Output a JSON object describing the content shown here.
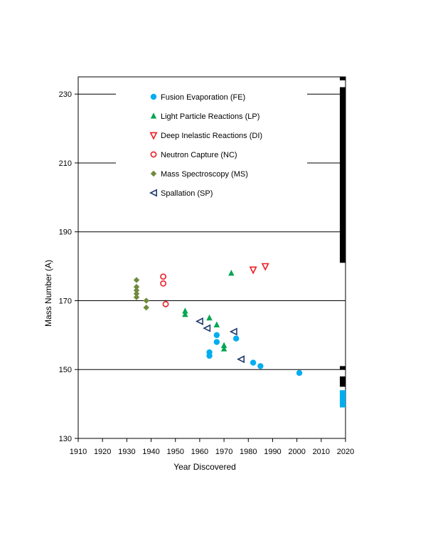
{
  "chart_data": {
    "type": "scatter",
    "title": "",
    "xlabel": "Year Discovered",
    "ylabel": "Mass Number (A)",
    "xlim": [
      1910,
      2020
    ],
    "ylim": [
      130,
      235
    ],
    "x_ticks": [
      1910,
      1920,
      1930,
      1940,
      1950,
      1960,
      1970,
      1980,
      1990,
      2000,
      2010,
      2020
    ],
    "y_ticks": [
      130,
      150,
      170,
      190,
      210,
      230
    ],
    "grid": "horizontal",
    "legend_position": "top-left",
    "series": [
      {
        "name": "Fusion Evaporation (FE)",
        "marker": "circle-filled",
        "color": "#00AEEF",
        "points": [
          [
            1964,
            154
          ],
          [
            1964,
            155
          ],
          [
            1967,
            158
          ],
          [
            1967,
            160
          ],
          [
            1975,
            159
          ],
          [
            1982,
            152
          ],
          [
            1985,
            151
          ],
          [
            2001,
            149
          ]
        ]
      },
      {
        "name": "Light Particle Reactions (LP)",
        "marker": "triangle-filled",
        "color": "#00A651",
        "points": [
          [
            1954,
            166
          ],
          [
            1954,
            167
          ],
          [
            1964,
            165
          ],
          [
            1967,
            163
          ],
          [
            1970,
            156
          ],
          [
            1970,
            157
          ],
          [
            1973,
            178
          ]
        ]
      },
      {
        "name": "Deep Inelastic Reactions (DI)",
        "marker": "triangle-down-open",
        "color": "#ED1C24",
        "points": [
          [
            1982,
            179
          ],
          [
            1987,
            180
          ]
        ]
      },
      {
        "name": "Neutron Capture (NC)",
        "marker": "circle-open",
        "color": "#ED1C24",
        "points": [
          [
            1945,
            175
          ],
          [
            1945,
            177
          ],
          [
            1946,
            169
          ]
        ]
      },
      {
        "name": "Mass Spectroscopy (MS)",
        "marker": "diamond-filled",
        "color": "#6E8B3D",
        "points": [
          [
            1934,
            171
          ],
          [
            1934,
            172
          ],
          [
            1934,
            173
          ],
          [
            1934,
            174
          ],
          [
            1934,
            176
          ],
          [
            1938,
            168
          ],
          [
            1938,
            170
          ]
        ]
      },
      {
        "name": "Spallation (SP)",
        "marker": "triangle-left-open",
        "color": "#1F3A6E",
        "points": [
          [
            1960,
            164
          ],
          [
            1963,
            162
          ],
          [
            1974,
            161
          ],
          [
            1977,
            153
          ]
        ]
      }
    ],
    "edge_bars": [
      {
        "color": "#000000",
        "ranges": [
          [
            234,
            235
          ],
          [
            181,
            232
          ],
          [
            150,
            151
          ],
          [
            145,
            148
          ]
        ]
      },
      {
        "color": "#00AEEF",
        "ranges": [
          [
            139,
            144
          ]
        ]
      }
    ]
  }
}
